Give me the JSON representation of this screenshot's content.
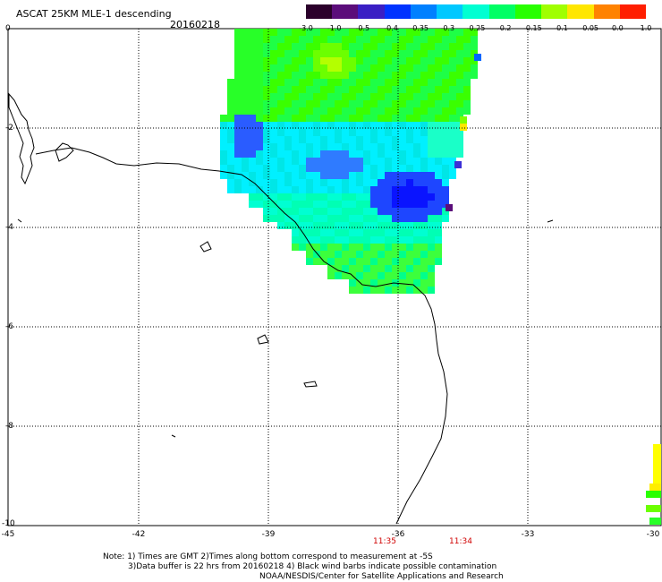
{
  "header": {
    "title": "ASCAT 25KM MLE-1 descending",
    "date": "20160218"
  },
  "colorbar": {
    "labels": [
      "-3.0",
      "-1.0",
      "-0.5",
      "-0.4",
      "-0.35",
      "-0.3",
      "-0.25",
      "-0.2",
      "-0.15",
      "-0.1",
      "-0.05",
      "0.0",
      "1.0"
    ],
    "colors": [
      "#2b002b",
      "#5b0d7a",
      "#3a1fc4",
      "#0033ff",
      "#0080ff",
      "#00c8ff",
      "#00ffd2",
      "#00ff64",
      "#28ff00",
      "#a0ff00",
      "#ffe600",
      "#ff8200",
      "#ff1e00"
    ]
  },
  "axes": {
    "y_ticks": [
      "0",
      "-2",
      "-4",
      "-6",
      "-8",
      "-10"
    ],
    "x_ticks": [
      "-45",
      "-42",
      "-39",
      "-36",
      "-33",
      "-30"
    ]
  },
  "times": [
    "11:35",
    "11:34"
  ],
  "notes": [
    "Note: 1) Times are GMT 2)Times along bottom correspond to measurement at -5S",
    "3)Data buffer is 22 hrs from 20160218 4) Black wind barbs indicate possible contamination",
    "NOAA/NESDIS/Center for Satellite Applications and Research"
  ]
}
